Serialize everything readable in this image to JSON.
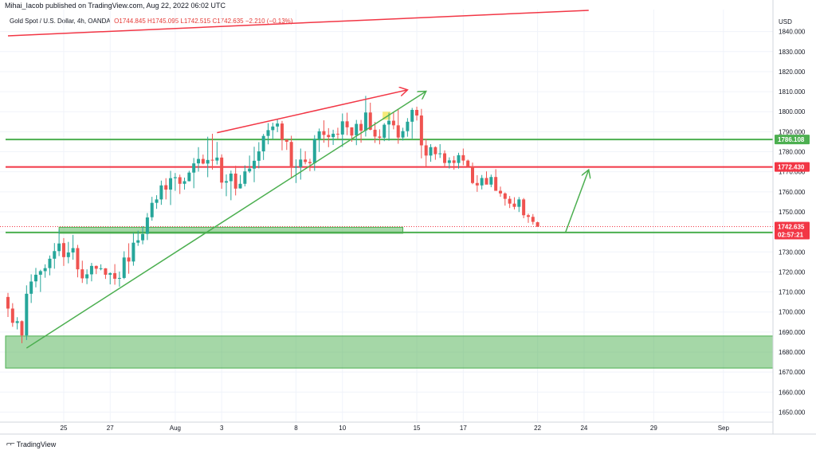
{
  "header": {
    "publisher": "Mihai_Iacob published on TradingView.com, Aug 22, 2022 06:02 UTC"
  },
  "legend": {
    "symbol": "Gold Spot / U.S. Dollar, 4h, OANDA",
    "open": "O1744.845",
    "high": "H1745.095",
    "low": "L1742.515",
    "close": "C1742.635",
    "change": "−2.210 (−0.13%)"
  },
  "footer": {
    "brand": "TradingView",
    "logo_icon": "tradingview-logo-icon"
  },
  "chart_data": {
    "type": "candlestick",
    "currency_label": "USD",
    "y_range": [
      1645,
      1851
    ],
    "y_ticks": [
      1650,
      1660,
      1670,
      1680,
      1690,
      1700,
      1710,
      1720,
      1730,
      1740,
      1750,
      1760,
      1770,
      1780,
      1790,
      1800,
      1810,
      1820,
      1830,
      1840
    ],
    "x_ticks": [
      "25",
      "27",
      "Aug",
      "3",
      "8",
      "10",
      "15",
      "17",
      "22",
      "24",
      "29",
      "Sep"
    ],
    "x_tick_index": [
      12,
      22,
      36,
      46,
      62,
      72,
      88,
      98,
      114,
      124,
      139,
      154
    ],
    "candles": [
      [
        1707.5,
        1709.5,
        1697.5,
        1701.7
      ],
      [
        1701.7,
        1704.4,
        1692.6,
        1694.6
      ],
      [
        1694.5,
        1697.4,
        1691.3,
        1695.4
      ],
      [
        1695.4,
        1695.8,
        1684.4,
        1688.3
      ],
      [
        1688.3,
        1713.3,
        1686.0,
        1709.1
      ],
      [
        1709.1,
        1718.8,
        1704.5,
        1715.2
      ],
      [
        1715.3,
        1722.0,
        1712.3,
        1718.6
      ],
      [
        1718.6,
        1721.1,
        1710.0,
        1720.4
      ],
      [
        1720.4,
        1723.8,
        1717.1,
        1721.9
      ],
      [
        1721.9,
        1728.2,
        1718.3,
        1726.6
      ],
      [
        1726.6,
        1734.4,
        1721.6,
        1730.4
      ],
      [
        1730.4,
        1741.1,
        1727.9,
        1734.2
      ],
      [
        1734.4,
        1736.9,
        1723.0,
        1727.4
      ],
      [
        1727.4,
        1735.0,
        1724.3,
        1729.7
      ],
      [
        1729.7,
        1738.5,
        1726.1,
        1731.9
      ],
      [
        1731.9,
        1733.5,
        1717.3,
        1721.3
      ],
      [
        1721.3,
        1725.6,
        1714.5,
        1716.8
      ],
      [
        1716.8,
        1721.3,
        1713.9,
        1718.8
      ],
      [
        1718.8,
        1724.5,
        1715.3,
        1723.0
      ],
      [
        1723.0,
        1723.2,
        1718.9,
        1721.6
      ],
      [
        1721.6,
        1723.8,
        1720.8,
        1721.8
      ],
      [
        1721.8,
        1721.9,
        1716.5,
        1718.6
      ],
      [
        1718.6,
        1719.8,
        1713.8,
        1719.4
      ],
      [
        1719.4,
        1723.9,
        1713.6,
        1716.6
      ],
      [
        1716.6,
        1720.2,
        1712.6,
        1717.0
      ],
      [
        1717.0,
        1730.3,
        1716.4,
        1727.2
      ],
      [
        1727.2,
        1734.3,
        1719.1,
        1725.2
      ],
      [
        1725.2,
        1739.6,
        1723.1,
        1734.6
      ],
      [
        1734.6,
        1740.6,
        1733.0,
        1735.8
      ],
      [
        1735.8,
        1742.9,
        1733.8,
        1738.9
      ],
      [
        1739.0,
        1749.4,
        1735.9,
        1747.2
      ],
      [
        1747.3,
        1757.5,
        1745.6,
        1754.5
      ],
      [
        1754.5,
        1758.3,
        1751.5,
        1756.2
      ],
      [
        1756.2,
        1765.6,
        1753.5,
        1763.2
      ],
      [
        1763.3,
        1766.8,
        1756.2,
        1761.1
      ],
      [
        1761.1,
        1770.5,
        1753.4,
        1766.8
      ],
      [
        1766.8,
        1769.4,
        1760.5,
        1767.3
      ],
      [
        1767.3,
        1768.6,
        1758.9,
        1764.0
      ],
      [
        1764.0,
        1767.1,
        1761.1,
        1765.3
      ],
      [
        1765.3,
        1770.5,
        1765.2,
        1769.6
      ],
      [
        1769.6,
        1776.9,
        1761.8,
        1774.2
      ],
      [
        1774.2,
        1782.3,
        1770.1,
        1776.4
      ],
      [
        1776.4,
        1778.6,
        1773.7,
        1774.1
      ],
      [
        1774.1,
        1787.5,
        1767.3,
        1775.9
      ],
      [
        1776.0,
        1789.0,
        1771.1,
        1775.6
      ],
      [
        1775.6,
        1784.9,
        1773.6,
        1777.1
      ],
      [
        1777.1,
        1778.7,
        1761.5,
        1764.6
      ],
      [
        1764.6,
        1768.7,
        1757.8,
        1765.3
      ],
      [
        1765.3,
        1770.6,
        1755.8,
        1769.1
      ],
      [
        1769.1,
        1773.0,
        1758.2,
        1761.6
      ],
      [
        1761.7,
        1768.4,
        1761.6,
        1764.0
      ],
      [
        1764.0,
        1773.2,
        1762.7,
        1770.2
      ],
      [
        1770.2,
        1778.1,
        1769.4,
        1771.6
      ],
      [
        1771.6,
        1782.5,
        1764.8,
        1775.5
      ],
      [
        1775.5,
        1784.8,
        1771.7,
        1780.2
      ],
      [
        1780.2,
        1788.9,
        1775.9,
        1787.9
      ],
      [
        1787.9,
        1794.3,
        1783.7,
        1790.8
      ],
      [
        1790.8,
        1794.5,
        1786.4,
        1792.6
      ],
      [
        1792.6,
        1796.5,
        1789.8,
        1794.1
      ],
      [
        1794.1,
        1795.4,
        1780.7,
        1786.0
      ],
      [
        1786.0,
        1786.3,
        1780.9,
        1785.0
      ],
      [
        1784.9,
        1788.0,
        1766.7,
        1772.0
      ],
      [
        1772.0,
        1776.2,
        1764.4,
        1772.4
      ],
      [
        1772.4,
        1781.6,
        1766.1,
        1776.1
      ],
      [
        1776.1,
        1780.3,
        1773.7,
        1774.9
      ],
      [
        1774.9,
        1776.5,
        1770.3,
        1774.3
      ],
      [
        1774.3,
        1788.3,
        1770.5,
        1786.4
      ],
      [
        1786.4,
        1791.6,
        1779.9,
        1790.2
      ],
      [
        1790.3,
        1795.7,
        1784.5,
        1788.4
      ],
      [
        1788.4,
        1791.8,
        1782.3,
        1787.3
      ],
      [
        1787.3,
        1791.0,
        1783.4,
        1789.0
      ],
      [
        1789.0,
        1792.0,
        1786.4,
        1788.6
      ],
      [
        1788.6,
        1799.1,
        1782.4,
        1795.2
      ],
      [
        1795.2,
        1799.5,
        1788.3,
        1792.2
      ],
      [
        1792.2,
        1792.2,
        1785.0,
        1788.1
      ],
      [
        1788.2,
        1795.9,
        1783.3,
        1793.9
      ],
      [
        1793.9,
        1795.9,
        1784.5,
        1790.5
      ],
      [
        1790.6,
        1807.9,
        1787.6,
        1799.6
      ],
      [
        1799.6,
        1804.5,
        1790.7,
        1791.0
      ],
      [
        1791.0,
        1794.9,
        1784.4,
        1787.6
      ],
      [
        1787.6,
        1791.2,
        1783.7,
        1787.0
      ],
      [
        1787.0,
        1794.3,
        1785.3,
        1793.5
      ],
      [
        1793.6,
        1799.5,
        1785.5,
        1795.5
      ],
      [
        1795.5,
        1799.7,
        1791.2,
        1793.2
      ],
      [
        1793.2,
        1801.4,
        1784.0,
        1787.1
      ],
      [
        1787.1,
        1792.0,
        1785.6,
        1790.3
      ],
      [
        1790.3,
        1796.8,
        1787.5,
        1795.0
      ],
      [
        1795.0,
        1801.9,
        1786.6,
        1800.9
      ],
      [
        1800.9,
        1802.5,
        1795.6,
        1798.1
      ],
      [
        1798.1,
        1801.4,
        1776.7,
        1783.2
      ],
      [
        1783.2,
        1786.4,
        1772.5,
        1778.1
      ],
      [
        1778.1,
        1783.8,
        1775.0,
        1782.3
      ],
      [
        1782.3,
        1782.7,
        1776.0,
        1778.8
      ],
      [
        1778.8,
        1783.8,
        1776.9,
        1779.2
      ],
      [
        1779.2,
        1780.7,
        1772.4,
        1774.4
      ],
      [
        1774.4,
        1777.2,
        1771.6,
        1775.7
      ],
      [
        1775.7,
        1777.9,
        1771.1,
        1774.4
      ],
      [
        1774.4,
        1779.5,
        1771.6,
        1778.3
      ],
      [
        1778.3,
        1781.6,
        1773.3,
        1775.6
      ],
      [
        1775.6,
        1776.1,
        1772.2,
        1772.7
      ],
      [
        1772.7,
        1774.6,
        1763.8,
        1764.4
      ],
      [
        1764.4,
        1768.3,
        1760.0,
        1763.2
      ],
      [
        1763.2,
        1768.4,
        1761.2,
        1766.9
      ],
      [
        1766.9,
        1770.2,
        1763.9,
        1763.6
      ],
      [
        1763.6,
        1768.6,
        1762.3,
        1767.4
      ],
      [
        1767.4,
        1771.3,
        1762.1,
        1760.5
      ],
      [
        1760.5,
        1762.6,
        1757.5,
        1759.2
      ],
      [
        1759.2,
        1759.7,
        1753.1,
        1756.5
      ],
      [
        1756.5,
        1757.9,
        1751.9,
        1754.1
      ],
      [
        1754.1,
        1757.3,
        1751.2,
        1752.5
      ],
      [
        1752.5,
        1757.4,
        1749.9,
        1756.2
      ],
      [
        1756.2,
        1756.9,
        1746.8,
        1748.3
      ],
      [
        1748.3,
        1749.1,
        1744.5,
        1747.5
      ],
      [
        1747.5,
        1748.9,
        1743.6,
        1745.0
      ],
      [
        1744.8,
        1745.1,
        1742.5,
        1742.6
      ]
    ],
    "zones": [
      {
        "name": "support-zone-lower",
        "y_from": 1672,
        "y_to": 1688,
        "x_from": 0,
        "x_to": 999,
        "color": "#4caf50"
      },
      {
        "name": "support-zone-upper",
        "y_from": 1739.3,
        "y_to": 1742.3,
        "x_from": 11,
        "x_to": 85,
        "color": "#4caf50"
      }
    ],
    "horizontal_lines": [
      {
        "name": "resistance-line",
        "y": 1786.108,
        "color": "#4caf50",
        "label": "1786.108"
      },
      {
        "name": "target-line",
        "y": 1772.43,
        "color": "#f23645",
        "label": "1772.430"
      },
      {
        "name": "support-line",
        "y": 1739.687,
        "color": "#4caf50",
        "label": "1739.687"
      }
    ],
    "trend_lines": [
      {
        "name": "upper-channel-line",
        "from": [
          0,
          1837.9
        ],
        "to": [
          125,
          1850.6
        ],
        "color": "#f23645",
        "arrow": false
      },
      {
        "name": "rising-trendline",
        "from": [
          4,
          1682.0
        ],
        "to": [
          90,
          1810.2
        ],
        "color": "#4caf50",
        "arrow": true
      },
      {
        "name": "red-projection-arrow",
        "from": [
          45,
          1789.5
        ],
        "to": [
          86,
          1810.9
        ],
        "color": "#f23645",
        "arrow": true
      },
      {
        "name": "bounce-projection-arrow",
        "from": [
          120,
          1739.7
        ],
        "to": [
          125,
          1771.0
        ],
        "color": "#4caf50",
        "arrow": true
      }
    ],
    "marker": {
      "name": "highlight-marker",
      "x": 81.5,
      "y_from": 1796,
      "y_to": 1800,
      "color": "#f5e663"
    },
    "price_badges": [
      {
        "name": "last-price-badge",
        "y": 1742.635,
        "label": "1742.635",
        "sub": "02:57:21",
        "color": "#f23645"
      }
    ],
    "colors": {
      "up": "#26a69a",
      "down": "#ef5350",
      "grid": "#f0f3fa",
      "axis": "#131722"
    }
  }
}
